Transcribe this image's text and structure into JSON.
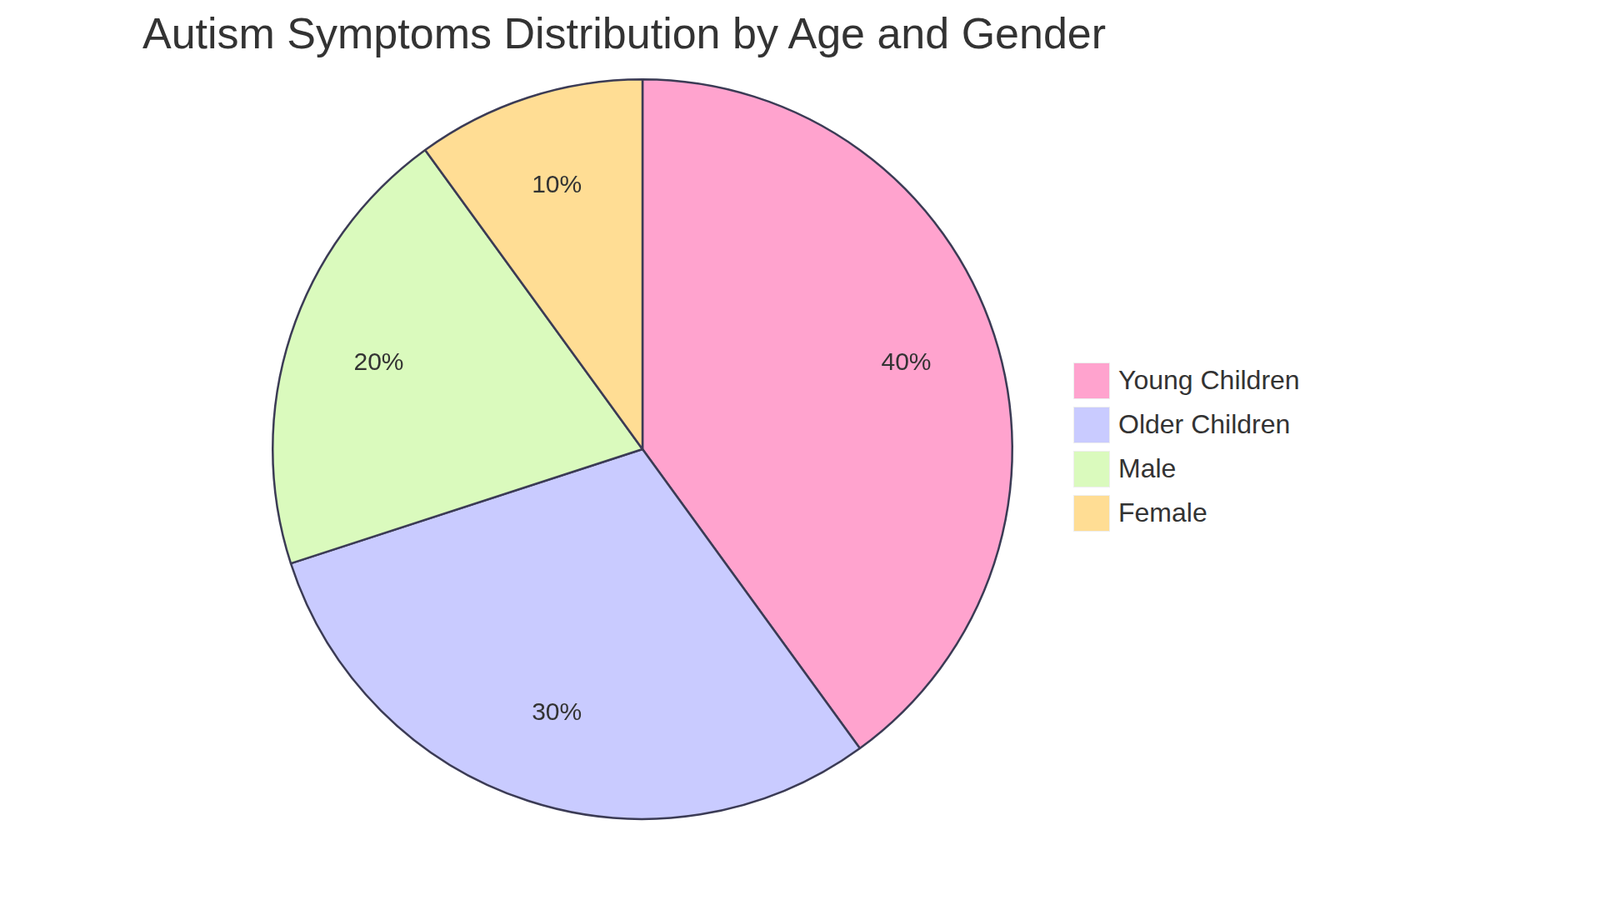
{
  "chart_data": {
    "type": "pie",
    "title": "Autism Symptoms Distribution by Age and Gender",
    "categories": [
      "Young Children",
      "Older Children",
      "Male",
      "Female"
    ],
    "values": [
      40,
      30,
      20,
      10
    ],
    "value_labels": [
      "40%",
      "30%",
      "20%",
      "10%"
    ],
    "colors": [
      "#ffa3ce",
      "#c9cbff",
      "#dafabd",
      "#ffdd94"
    ],
    "data_labels": true,
    "legend": "right"
  }
}
